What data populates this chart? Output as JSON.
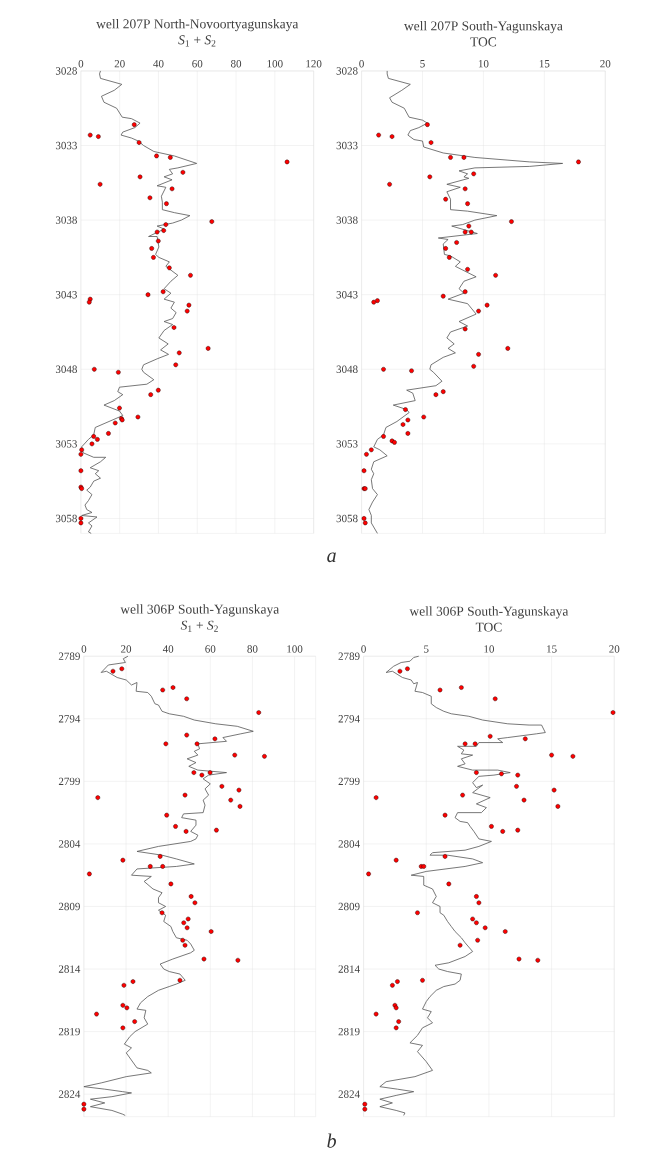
{
  "chart_data": [
    {
      "type": "line",
      "title": "well 207P North-Novoortyagunskaya",
      "subtitle": "*S*$_{1}$ + *S*$_{2}$",
      "annotations": [
        "a"
      ],
      "xlim": [
        0,
        120
      ],
      "xticks": [
        0,
        20,
        40,
        60,
        80,
        100,
        120
      ],
      "ylim": [
        3059,
        3028
      ],
      "yticks": [
        3028,
        3033,
        3038,
        3043,
        3048,
        3053,
        3058
      ],
      "grid": true,
      "series": [
        {
          "color": "#555555",
          "x": [
            10.1,
            9.6,
            10.1,
            21.1,
            17.2,
            10.6,
            11.9,
            18.4,
            21.3,
            26.1,
            30.5,
            27.8,
            21.6,
            20.7,
            26.1,
            29.6,
            32.3,
            37.6,
            48.2,
            59.7,
            50.0,
            45.6,
            47.3,
            42.9,
            47.0,
            39.3,
            43.8,
            41.5,
            42.0,
            42.0,
            48.2,
            56.2,
            51.8,
            47.3,
            39.3,
            42.9,
            34.9,
            39.3,
            40.2,
            38.5,
            40.2,
            45.6,
            43.8,
            50.0,
            46.4,
            42.9,
            46.4,
            42.9,
            48.2,
            46.4,
            49.1,
            47.3,
            42.9,
            47.3,
            42.9,
            40.2,
            45.0,
            41.1,
            45.2,
            39.3,
            32.3,
            31.4,
            32.3,
            37.6,
            34.0,
            19.9,
            19.0,
            21.6,
            17.2,
            11.9,
            19.9,
            21.6,
            14.5,
            7.4,
            6.6,
            3.9,
            0.4,
            1.2,
            6.6,
            12.8,
            10.1,
            4.8,
            9.2,
            7.4,
            10.1,
            6.6,
            4.8,
            3.0,
            5.7,
            3.9,
            2.1,
            3.0,
            5.7,
            0.4,
            8.3,
            3.9,
            5.7,
            3.9,
            5.3
          ],
          "values": [
            3028.0,
            3028.2,
            3028.5,
            3028.9,
            3029.3,
            3029.7,
            3030.1,
            3030.5,
            3031.1,
            3031.2,
            3031.5,
            3031.8,
            3032.1,
            3032.3,
            3032.5,
            3032.7,
            3033.0,
            3033.4,
            3033.7,
            3034.2,
            3034.5,
            3034.6,
            3034.9,
            3035.1,
            3035.3,
            3035.7,
            3035.8,
            3036.4,
            3036.8,
            3037.3,
            3037.5,
            3037.7,
            3038.0,
            3038.2,
            3038.4,
            3038.6,
            3039.1,
            3039.1,
            3039.8,
            3040.3,
            3040.5,
            3040.8,
            3041.1,
            3041.7,
            3042.1,
            3042.6,
            3042.9,
            3043.3,
            3043.5,
            3043.9,
            3044.2,
            3044.6,
            3044.8,
            3045.0,
            3045.4,
            3045.9,
            3046.3,
            3046.7,
            3047.0,
            3047.3,
            3047.7,
            3048.0,
            3048.2,
            3048.7,
            3049.0,
            3049.2,
            3049.5,
            3049.7,
            3050.1,
            3050.4,
            3050.8,
            3051.1,
            3051.5,
            3051.9,
            3052.4,
            3052.7,
            3053.2,
            3053.6,
            3053.9,
            3053.9,
            3054.2,
            3054.6,
            3054.8,
            3055.0,
            3055.3,
            3055.5,
            3055.9,
            3056.1,
            3056.4,
            3056.8,
            3057.1,
            3057.4,
            3057.6,
            3057.8,
            3057.9,
            3058.3,
            3058.5,
            3058.9,
            3059.0
          ]
        },
        {
          "type": "scatter",
          "color": "#ff0000",
          "marker": "circle",
          "x": [
            27.5,
            4.8,
            9.0,
            30.0,
            39.0,
            46.1,
            106.3,
            52.6,
            30.5,
            9.9,
            47.0,
            35.6,
            44.1,
            67.5,
            43.8,
            42.7,
            39.3,
            39.9,
            36.5,
            37.4,
            45.6,
            56.5,
            42.4,
            34.6,
            4.8,
            4.3,
            55.7,
            54.8,
            48.0,
            65.6,
            50.7,
            48.9,
            6.9,
            19.3,
            39.9,
            36.0,
            19.9,
            29.4,
            20.9,
            21.3,
            17.7,
            14.2,
            6.6,
            8.5,
            5.7,
            0.4,
            0,
            0,
            0,
            0.4,
            0,
            0
          ],
          "values": [
            3031.6,
            3032.3,
            3032.4,
            3032.8,
            3033.7,
            3033.8,
            3034.1,
            3034.8,
            3035.1,
            3035.6,
            3035.9,
            3036.5,
            3036.9,
            3038.1,
            3038.3,
            3038.7,
            3038.8,
            3039.4,
            3039.9,
            3040.5,
            3041.2,
            3041.7,
            3042.8,
            3043.0,
            3043.3,
            3043.5,
            3043.7,
            3044.1,
            3045.2,
            3046.6,
            3046.9,
            3047.7,
            3048.0,
            3048.2,
            3049.4,
            3049.7,
            3050.6,
            3051.2,
            3051.3,
            3051.4,
            3051.6,
            3052.3,
            3052.5,
            3052.7,
            3053.0,
            3053.4,
            3053.7,
            3054.8,
            3055.9,
            3056.0,
            3058.0,
            3058.3
          ]
        }
      ]
    },
    {
      "type": "line",
      "title": "well 207P South-Yagunskaya",
      "subtitle": "TOC",
      "xlim": [
        0,
        20
      ],
      "xticks": [
        0,
        5,
        10,
        15,
        20
      ],
      "ylim": [
        3059,
        3028
      ],
      "yticks": [
        3028,
        3033,
        3038,
        3043,
        3048,
        3053,
        3058
      ],
      "grid": true,
      "series": [
        {
          "color": "#555555",
          "x": [
            2.1,
            2.1,
            2.2,
            4.0,
            3.3,
            2.3,
            2.5,
            3.5,
            3.9,
            5.0,
            5.4,
            4.7,
            4.0,
            3.8,
            4.3,
            5.0,
            5.1,
            6.7,
            9.3,
            13.8,
            16.5,
            13.8,
            9.3,
            8.0,
            8.7,
            8.4,
            8.8,
            7.0,
            8.1,
            7.0,
            7.3,
            7.3,
            8.7,
            11.1,
            9.3,
            8.3,
            7.4,
            9.5,
            6.3,
            7.1,
            6.7,
            6.8,
            7.3,
            8.1,
            7.7,
            9.4,
            8.4,
            8.0,
            8.4,
            7.1,
            8.7,
            9.0,
            9.4,
            8.0,
            8.7,
            7.3,
            7.0,
            7.6,
            7.1,
            7.7,
            6.7,
            5.7,
            5.6,
            5.9,
            6.6,
            6.1,
            3.7,
            4.2,
            4.4,
            2.6,
            3.7,
            3.9,
            2.9,
            2.0,
            1.8,
            1.3,
            1.0,
            1.5,
            2.1,
            1.0,
            0.8,
            1.0,
            0.8,
            0.9,
            1.3,
            0.9,
            0.6,
            0.8,
            0.8,
            1.3
          ],
          "values": [
            3028.0,
            3028.2,
            3028.5,
            3028.9,
            3029.3,
            3029.8,
            3030.1,
            3030.5,
            3031.1,
            3031.3,
            3031.5,
            3031.8,
            3032.0,
            3032.3,
            3032.6,
            3032.7,
            3033.1,
            3033.5,
            3033.8,
            3034.1,
            3034.2,
            3034.4,
            3034.5,
            3034.7,
            3034.9,
            3035.1,
            3035.2,
            3035.6,
            3035.8,
            3036.1,
            3036.6,
            3037.3,
            3037.4,
            3037.7,
            3038.0,
            3038.3,
            3038.4,
            3038.9,
            3039.2,
            3039.3,
            3039.6,
            3040.3,
            3040.4,
            3040.8,
            3041.1,
            3041.8,
            3042.1,
            3042.6,
            3042.9,
            3043.3,
            3043.6,
            3043.9,
            3044.3,
            3044.8,
            3045.1,
            3045.5,
            3045.9,
            3046.3,
            3046.6,
            3046.9,
            3047.2,
            3047.7,
            3048.0,
            3048.2,
            3048.8,
            3049.1,
            3049.4,
            3049.6,
            3050.1,
            3050.4,
            3050.7,
            3050.9,
            3051.5,
            3051.9,
            3052.4,
            3052.7,
            3053.2,
            3053.4,
            3053.8,
            3054.2,
            3054.7,
            3055.0,
            3055.4,
            3056.0,
            3056.4,
            3056.9,
            3057.4,
            3057.8,
            3058.3,
            3059.0
          ]
        },
        {
          "type": "scatter",
          "color": "#ff0000",
          "marker": "circle",
          "x": [
            5.4,
            1.4,
            2.5,
            5.7,
            7.3,
            8.4,
            17.8,
            9.2,
            5.6,
            2.3,
            8.5,
            6.9,
            8.7,
            12.3,
            8.8,
            9.0,
            8.5,
            7.8,
            6.9,
            7.2,
            8.7,
            11.0,
            8.5,
            6.7,
            1.3,
            1.0,
            10.3,
            9.6,
            8.5,
            12.0,
            9.6,
            9.2,
            1.8,
            4.1,
            6.7,
            6.1,
            3.6,
            5.1,
            3.8,
            3.4,
            3.8,
            1.8,
            2.5,
            2.7,
            0.8,
            0.4,
            0.2,
            0.2,
            0.3,
            0.2,
            0.3
          ],
          "values": [
            3031.6,
            3032.3,
            3032.4,
            3032.8,
            3033.8,
            3033.8,
            3034.1,
            3034.9,
            3035.1,
            3035.6,
            3035.9,
            3036.6,
            3036.9,
            3038.1,
            3038.4,
            3038.8,
            3038.8,
            3039.5,
            3039.9,
            3040.5,
            3041.3,
            3041.7,
            3042.8,
            3043.1,
            3043.4,
            3043.5,
            3043.7,
            3044.1,
            3045.3,
            3046.6,
            3047.0,
            3047.8,
            3048.0,
            3048.1,
            3049.5,
            3049.7,
            3050.7,
            3051.2,
            3051.4,
            3051.7,
            3052.3,
            3052.5,
            3052.8,
            3052.9,
            3053.4,
            3053.7,
            3054.8,
            3056.0,
            3056.0,
            3058.0,
            3058.3
          ]
        }
      ]
    },
    {
      "type": "line",
      "title": "well 306P South-Yagunskaya",
      "subtitle": "*S*$_{1}$ + *S*$_{2}$",
      "annotations": [
        "b"
      ],
      "xlim": [
        0,
        110
      ],
      "xticks": [
        0,
        20,
        40,
        60,
        80,
        100
      ],
      "ylim": [
        2825.8,
        2789
      ],
      "yticks": [
        2789,
        2794,
        2799,
        2804,
        2809,
        2814,
        2819,
        2824
      ],
      "grid": true,
      "series": [
        {
          "color": "#555555",
          "x": [
            20.9,
            18.7,
            19.7,
            11.6,
            8.2,
            10.7,
            15.8,
            20.1,
            22.6,
            25.2,
            24.8,
            30.3,
            32.0,
            33.7,
            35.4,
            37.1,
            40.5,
            47.3,
            52.4,
            62.6,
            72.8,
            80.4,
            74.5,
            66.0,
            67.7,
            54.1,
            54.9,
            52.4,
            54.1,
            49.0,
            53.2,
            49.8,
            54.1,
            67.7,
            59.2,
            56.6,
            60.0,
            57.5,
            59.2,
            56.6,
            57.5,
            56.6,
            47.3,
            46.4,
            53.2,
            53.2,
            50.7,
            54.1,
            53.2,
            50.7,
            35.4,
            25.2,
            37.1,
            43.9,
            52.4,
            43.9,
            25.2,
            22.6,
            32.0,
            28.6,
            32.8,
            37.1,
            35.4,
            35.4,
            38.8,
            35.4,
            38.8,
            37.9,
            41.3,
            42.2,
            43.9,
            49.0,
            50.7,
            52.4,
            50.7,
            42.2,
            36.2,
            37.9,
            40.5,
            45.6,
            48.1,
            43.9,
            40.5,
            35.4,
            30.3,
            26.9,
            25.2,
            29.4,
            28.6,
            30.3,
            24.3,
            21.8,
            19.2,
            22.6,
            20.1,
            25.2,
            30.3,
            32.0,
            20.1,
            8.2,
            0,
            9.9,
            18.4,
            22.6,
            13.3,
            3.1,
            9.9,
            3.1,
            13.3,
            18.4,
            19.6
          ],
          "values": [
            2789.0,
            2789.2,
            2789.5,
            2789.7,
            2790.3,
            2790.2,
            2790.7,
            2790.9,
            2791.3,
            2791.1,
            2791.8,
            2791.9,
            2792.2,
            2792.8,
            2792.9,
            2793.4,
            2793.6,
            2793.8,
            2794.1,
            2794.4,
            2794.6,
            2795.0,
            2795.2,
            2795.5,
            2795.8,
            2796.0,
            2796.4,
            2796.6,
            2796.9,
            2797.2,
            2797.5,
            2797.8,
            2798.1,
            2798.3,
            2798.5,
            2798.8,
            2799.2,
            2799.6,
            2800.1,
            2800.5,
            2800.9,
            2801.5,
            2801.6,
            2801.9,
            2802.1,
            2802.5,
            2803.0,
            2803.3,
            2803.6,
            2803.8,
            2804.2,
            2804.6,
            2804.9,
            2805.2,
            2805.6,
            2805.8,
            2806.0,
            2806.5,
            2806.6,
            2807.0,
            2807.6,
            2807.9,
            2808.3,
            2808.7,
            2809.0,
            2809.3,
            2809.7,
            2810.2,
            2810.6,
            2811.0,
            2811.5,
            2811.7,
            2812.0,
            2812.5,
            2812.7,
            2813.2,
            2813.6,
            2814.0,
            2814.2,
            2814.4,
            2814.9,
            2815.2,
            2815.4,
            2815.7,
            2816.2,
            2816.7,
            2817.2,
            2817.3,
            2817.9,
            2818.4,
            2819.0,
            2819.4,
            2820.0,
            2820.3,
            2820.7,
            2821.9,
            2822.1,
            2822.3,
            2822.6,
            2823.1,
            2823.4,
            2823.6,
            2823.8,
            2823.9,
            2824.2,
            2824.4,
            2824.7,
            2825.0,
            2825.3,
            2825.6,
            2825.7
          ]
        },
        {
          "type": "scatter",
          "color": "#ff0000",
          "marker": "circle",
          "x": [
            13.8,
            18.0,
            37.4,
            42.3,
            48.8,
            83.0,
            48.8,
            62.2,
            38.9,
            53.7,
            71.6,
            85.7,
            52.2,
            56.0,
            59.9,
            65.5,
            73.6,
            6.6,
            48.0,
            69.7,
            74.1,
            39.3,
            43.5,
            62.9,
            48.5,
            36.2,
            18.5,
            31.5,
            37.4,
            2.6,
            41.3,
            50.9,
            52.7,
            37.1,
            49.5,
            47.4,
            49.0,
            60.4,
            46.9,
            48.0,
            57.0,
            73.1,
            45.6,
            23.3,
            19.0,
            18.5,
            20.4,
            6.0,
            24.1,
            18.5,
            0,
            0
          ],
          "values": [
            2790.2,
            2790.0,
            2791.7,
            2791.5,
            2792.4,
            2793.5,
            2795.3,
            2795.6,
            2796.0,
            2796.0,
            2796.9,
            2797.0,
            2798.3,
            2798.5,
            2798.3,
            2799.4,
            2799.7,
            2800.3,
            2800.1,
            2800.5,
            2801.0,
            2801.7,
            2802.6,
            2802.9,
            2803.0,
            2805.0,
            2805.3,
            2805.8,
            2805.8,
            2806.4,
            2807.2,
            2808.2,
            2808.7,
            2809.5,
            2810.0,
            2810.3,
            2810.7,
            2811.0,
            2811.7,
            2812.1,
            2813.2,
            2813.3,
            2814.9,
            2815.0,
            2815.3,
            2816.9,
            2817.1,
            2817.6,
            2818.2,
            2818.7,
            2824.8,
            2825.2
          ]
        }
      ]
    },
    {
      "type": "line",
      "title": "well 306P South-Yagunskaya",
      "subtitle": "TOC",
      "xlim": [
        0,
        20
      ],
      "xticks": [
        0,
        5,
        10,
        15,
        20
      ],
      "ylim": [
        2825.8,
        2789
      ],
      "yticks": [
        2789,
        2794,
        2799,
        2804,
        2809,
        2814,
        2819,
        2824
      ],
      "grid": true,
      "series": [
        {
          "color": "#555555",
          "x": [
            4.4,
            4.0,
            3.7,
            3.0,
            2.4,
            1.8,
            2.3,
            3.1,
            3.8,
            4.0,
            4.3,
            4.1,
            4.7,
            5.4,
            5.4,
            5.8,
            6.4,
            7.0,
            8.4,
            9.5,
            11.5,
            13.2,
            14.2,
            14.5,
            13.8,
            11.5,
            10.7,
            11.1,
            9.2,
            9.0,
            7.5,
            8.0,
            7.8,
            8.7,
            7.8,
            8.1,
            7.5,
            8.7,
            10.7,
            11.7,
            10.4,
            9.2,
            8.7,
            9.0,
            9.5,
            8.7,
            10.1,
            9.0,
            9.8,
            9.4,
            7.5,
            7.3,
            7.7,
            8.3,
            8.5,
            8.8,
            9.2,
            10.2,
            9.2,
            8.1,
            5.5,
            5.3,
            6.7,
            8.7,
            9.5,
            8.1,
            5.0,
            3.8,
            4.8,
            4.8,
            5.5,
            5.8,
            5.5,
            6.1,
            6.1,
            6.4,
            6.7,
            7.0,
            7.3,
            7.8,
            8.1,
            8.7,
            8.1,
            6.8,
            5.7,
            6.0,
            6.7,
            7.8,
            7.7,
            7.3,
            6.4,
            5.8,
            5.3,
            5.0,
            4.7,
            5.4,
            5.1,
            5.5,
            4.7,
            4.3,
            3.7,
            4.7,
            4.3,
            5.0,
            5.5,
            4.1,
            1.8,
            1.3,
            2.7,
            4.0,
            2.6,
            1.3,
            2.3,
            1.3,
            2.6,
            3.3,
            3.2
          ],
          "values": [
            2789.0,
            2789.1,
            2789.4,
            2789.5,
            2789.8,
            2790.3,
            2790.2,
            2790.7,
            2790.9,
            2791.2,
            2791.1,
            2791.8,
            2791.9,
            2792.2,
            2792.8,
            2793.1,
            2793.4,
            2793.6,
            2793.8,
            2794.1,
            2794.4,
            2794.5,
            2794.5,
            2795.1,
            2795.2,
            2795.5,
            2795.6,
            2795.9,
            2795.9,
            2796.2,
            2796.2,
            2796.5,
            2796.8,
            2796.9,
            2797.2,
            2797.6,
            2797.8,
            2798.1,
            2798.1,
            2798.3,
            2798.5,
            2798.6,
            2799.1,
            2799.5,
            2799.3,
            2799.9,
            2800.3,
            2800.8,
            2801.1,
            2801.5,
            2801.5,
            2801.9,
            2802.2,
            2802.3,
            2802.6,
            2803.0,
            2803.6,
            2803.8,
            2804.2,
            2804.5,
            2804.7,
            2804.9,
            2804.9,
            2805.2,
            2805.5,
            2805.8,
            2806.2,
            2806.5,
            2806.6,
            2807.3,
            2807.6,
            2808.2,
            2808.7,
            2809.0,
            2809.5,
            2809.7,
            2810.2,
            2810.6,
            2811.0,
            2811.5,
            2811.9,
            2812.6,
            2813.0,
            2813.5,
            2813.7,
            2814.0,
            2814.2,
            2814.4,
            2814.9,
            2815.2,
            2815.4,
            2815.7,
            2816.2,
            2816.6,
            2817.2,
            2817.4,
            2817.9,
            2818.3,
            2818.7,
            2819.3,
            2819.9,
            2820.1,
            2820.6,
            2821.4,
            2822.1,
            2822.6,
            2823.0,
            2823.4,
            2823.6,
            2823.8,
            2824.1,
            2824.4,
            2824.7,
            2825.0,
            2825.3,
            2825.5,
            2825.7
          ]
        },
        {
          "type": "scatter",
          "color": "#ff0000",
          "marker": "circle",
          "x": [
            2.9,
            3.5,
            6.1,
            7.8,
            10.5,
            19.9,
            10.1,
            12.9,
            8.1,
            8.9,
            15.0,
            16.7,
            9.0,
            11.0,
            12.3,
            12.2,
            15.2,
            1.0,
            7.9,
            12.8,
            15.5,
            6.5,
            10.2,
            12.3,
            11.1,
            6.5,
            2.6,
            4.6,
            4.8,
            0.4,
            6.8,
            9.0,
            9.2,
            4.3,
            8.7,
            9.0,
            9.7,
            11.3,
            9.1,
            7.7,
            12.4,
            13.9,
            4.7,
            2.7,
            2.3,
            2.5,
            2.6,
            1.0,
            2.8,
            2.6,
            0.1,
            0.1
          ],
          "values": [
            2790.2,
            2790.0,
            2791.7,
            2791.5,
            2792.4,
            2793.5,
            2795.4,
            2795.6,
            2796.0,
            2796.0,
            2796.9,
            2797.0,
            2798.3,
            2798.4,
            2798.5,
            2799.4,
            2799.7,
            2800.3,
            2800.1,
            2800.5,
            2801.0,
            2801.7,
            2802.6,
            2802.9,
            2803.0,
            2805.0,
            2805.3,
            2805.8,
            2805.8,
            2806.4,
            2807.2,
            2808.2,
            2808.7,
            2809.5,
            2810.0,
            2810.3,
            2810.7,
            2811.0,
            2811.7,
            2812.1,
            2813.2,
            2813.3,
            2814.9,
            2815.0,
            2815.3,
            2816.9,
            2817.1,
            2817.6,
            2818.2,
            2818.7,
            2824.8,
            2825.2
          ]
        }
      ]
    }
  ]
}
